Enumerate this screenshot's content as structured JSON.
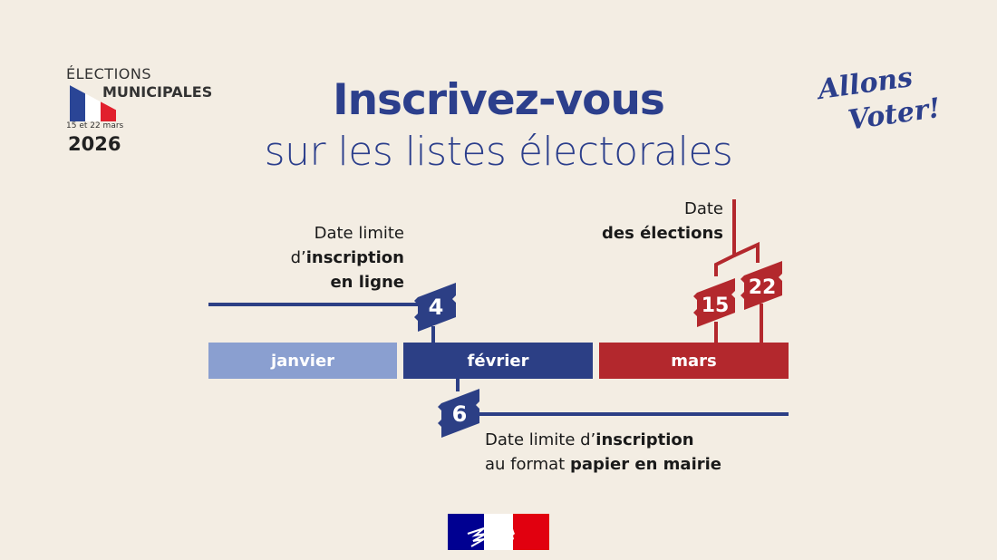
{
  "logo": {
    "line1": "ÉLECTIONS",
    "line2": "MUNICIPALES",
    "dates": "15 et 22 mars",
    "year": "2026"
  },
  "slogan": {
    "line1": "Allons",
    "line2": "Voter!"
  },
  "title": {
    "line1": "Inscrivez-vous",
    "line2": "sur les listes électorales"
  },
  "months": [
    {
      "label": "janvier",
      "color": "#8a9fd0"
    },
    {
      "label": "février",
      "color": "#2c3f85"
    },
    {
      "label": "mars",
      "color": "#b3282d"
    }
  ],
  "milestones": {
    "online": {
      "day": "4",
      "l1": "Date limite",
      "l2a": "d’",
      "l2b": "inscription",
      "l3": "en ligne",
      "color": "#2c3f85"
    },
    "paper": {
      "day": "6",
      "l1a": "Date limite d’",
      "l1b": "inscription",
      "l2a": "au format ",
      "l2b": "papier en mairie",
      "color": "#2c3f85"
    },
    "elections": {
      "day1": "15",
      "day2": "22",
      "l1": "Date",
      "l2": "des élections",
      "color": "#b3282d"
    }
  },
  "colors": {
    "background": "#f3ede3",
    "blue": "#2c3f8c",
    "red": "#b3282d"
  }
}
